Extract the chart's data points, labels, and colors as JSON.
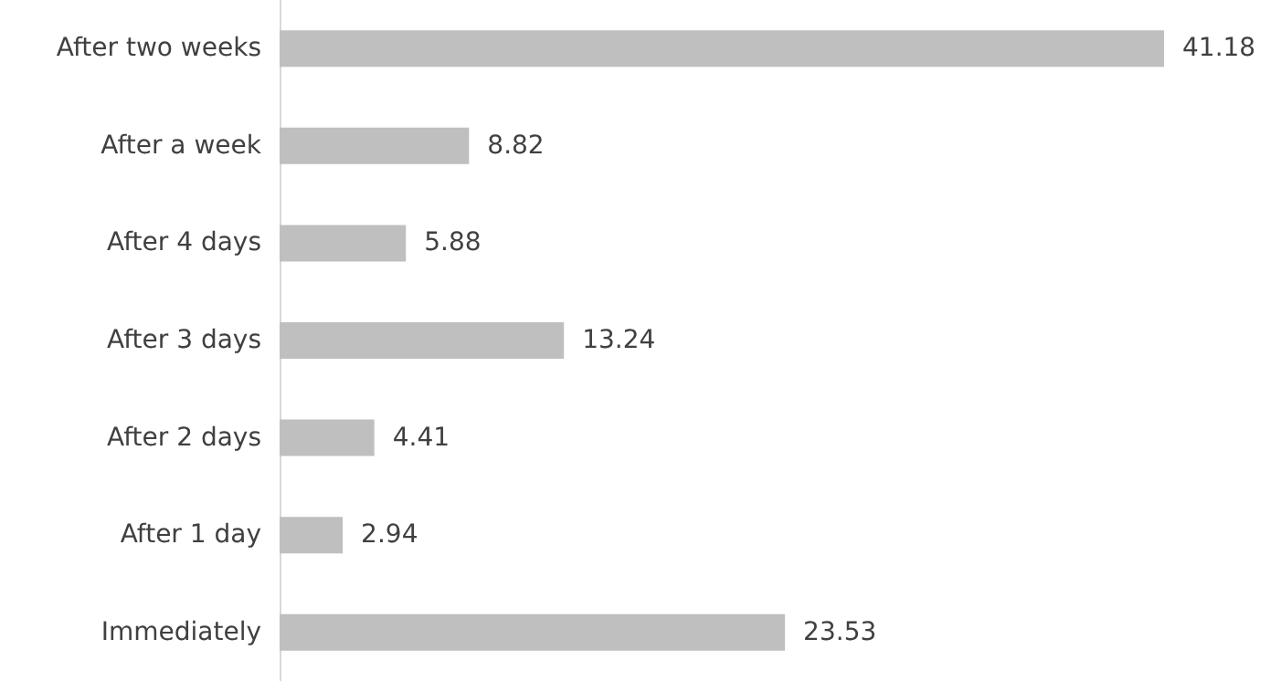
{
  "chart_data": {
    "type": "bar",
    "orientation": "horizontal",
    "categories": [
      "After two weeks",
      "After a week",
      "After 4 days",
      "After 3 days",
      "After 2 days",
      "After 1 day",
      "Immediately"
    ],
    "values": [
      41.18,
      8.82,
      5.88,
      13.24,
      4.41,
      2.94,
      23.53
    ],
    "color": "#bfbfbf",
    "data_labels": true
  }
}
